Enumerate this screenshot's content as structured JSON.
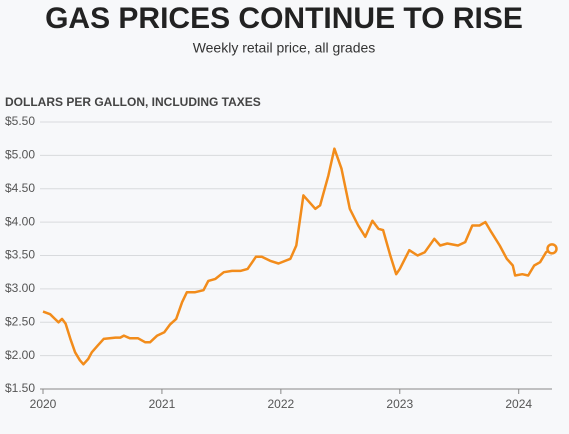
{
  "chart_data": {
    "type": "line",
    "title": "GAS PRICES CONTINUE TO RISE",
    "subtitle": "Weekly retail price, all grades",
    "y_axis_label": "DOLLARS PER GALLON, INCLUDING TAXES",
    "x": [
      2020.0,
      2020.06,
      2020.1,
      2020.13,
      2020.16,
      2020.19,
      2020.23,
      2020.27,
      2020.31,
      2020.34,
      2020.38,
      2020.41,
      2020.46,
      2020.51,
      2020.61,
      2020.65,
      2020.68,
      2020.73,
      2020.8,
      2020.86,
      2020.9,
      2020.96,
      2021.02,
      2021.07,
      2021.12,
      2021.17,
      2021.21,
      2021.28,
      2021.35,
      2021.39,
      2021.45,
      2021.52,
      2021.59,
      2021.66,
      2021.72,
      2021.79,
      2021.84,
      2021.91,
      2021.98,
      2022.08,
      2022.13,
      2022.19,
      2022.29,
      2022.33,
      2022.4,
      2022.45,
      2022.51,
      2022.58,
      2022.65,
      2022.71,
      2022.77,
      2022.82,
      2022.86,
      2022.92,
      2022.97,
      2023.0,
      2023.08,
      2023.15,
      2023.21,
      2023.29,
      2023.34,
      2023.4,
      2023.49,
      2023.55,
      2023.61,
      2023.67,
      2023.72,
      2023.77,
      2023.84,
      2023.9,
      2023.95,
      2023.97,
      2024.03,
      2024.08,
      2024.13,
      2024.18,
      2024.23,
      2024.28
    ],
    "series": [
      {
        "name": "Weekly retail price",
        "color": "#f28c1b",
        "values": [
          2.66,
          2.62,
          2.55,
          2.5,
          2.55,
          2.48,
          2.25,
          2.05,
          1.93,
          1.87,
          1.95,
          2.05,
          2.15,
          2.25,
          2.27,
          2.27,
          2.3,
          2.26,
          2.26,
          2.2,
          2.2,
          2.3,
          2.35,
          2.47,
          2.55,
          2.8,
          2.95,
          2.95,
          2.98,
          3.12,
          3.15,
          3.25,
          3.27,
          3.27,
          3.3,
          3.48,
          3.48,
          3.42,
          3.38,
          3.45,
          3.65,
          4.4,
          4.2,
          4.25,
          4.7,
          5.1,
          4.8,
          4.2,
          3.95,
          3.78,
          4.02,
          3.9,
          3.88,
          3.5,
          3.22,
          3.3,
          3.58,
          3.5,
          3.55,
          3.75,
          3.65,
          3.68,
          3.65,
          3.7,
          3.95,
          3.95,
          4.0,
          3.85,
          3.65,
          3.45,
          3.35,
          3.2,
          3.22,
          3.2,
          3.35,
          3.4,
          3.55,
          3.6
        ]
      }
    ],
    "xlim": [
      2020,
      2024.28
    ],
    "xticks": [
      2020,
      2021,
      2022,
      2023,
      2024
    ],
    "ylim": [
      1.5,
      5.5
    ],
    "yticks": [
      {
        "value": 1.5,
        "label": "$1.50"
      },
      {
        "value": 2.0,
        "label": "$2.00"
      },
      {
        "value": 2.5,
        "label": "$2.50"
      },
      {
        "value": 3.0,
        "label": "$3.00"
      },
      {
        "value": 3.5,
        "label": "$3.50"
      },
      {
        "value": 4.0,
        "label": "$4.00"
      },
      {
        "value": 4.5,
        "label": "$4.50"
      },
      {
        "value": 5.0,
        "label": "$5.00"
      },
      {
        "value": 5.5,
        "label": "$5.50"
      }
    ],
    "grid": true
  }
}
